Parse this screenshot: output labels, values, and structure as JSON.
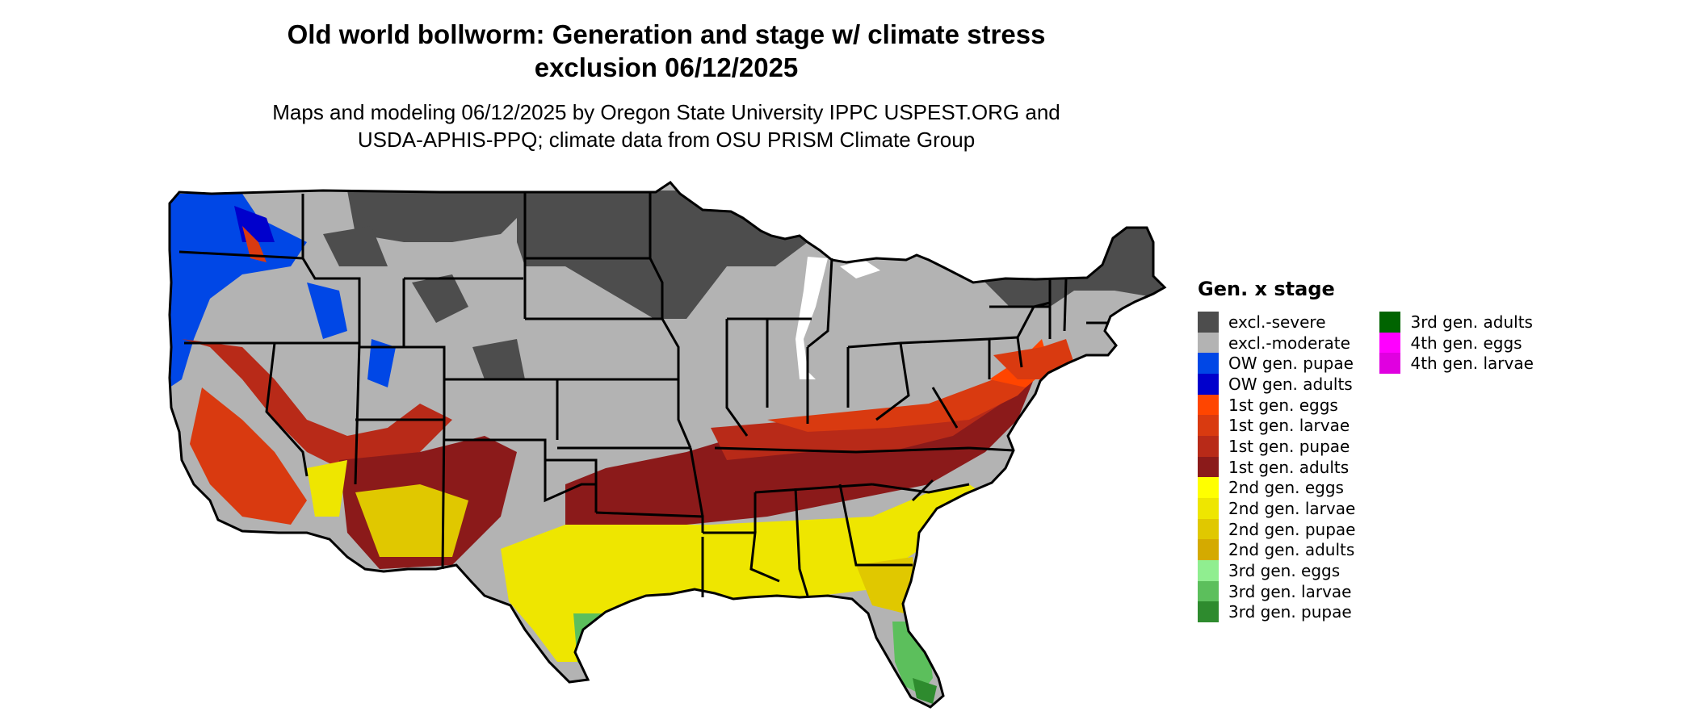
{
  "header": {
    "title_line1": "Old world bollworm: Generation and stage w/ climate stress",
    "title_line2": "exclusion 06/12/2025",
    "subtitle_line1": "Maps and modeling 06/12/2025 by Oregon State University IPPC USPEST.ORG and",
    "subtitle_line2": "USDA-APHIS-PPQ; climate data from OSU PRISM Climate Group"
  },
  "legend": {
    "title": "Gen. x stage",
    "col1": [
      {
        "label": "excl.-severe",
        "color": "#4d4d4d"
      },
      {
        "label": "excl.-moderate",
        "color": "#b3b3b3"
      },
      {
        "label": "OW gen. pupae",
        "color": "#0047e6"
      },
      {
        "label": "OW gen. adults",
        "color": "#0000cc"
      },
      {
        "label": "1st gen. eggs",
        "color": "#ff4500"
      },
      {
        "label": "1st gen. larvae",
        "color": "#d93a10"
      },
      {
        "label": "1st gen. pupae",
        "color": "#b82a18"
      },
      {
        "label": "1st gen. adults",
        "color": "#8b1a1a"
      },
      {
        "label": "2nd gen. eggs",
        "color": "#ffff00"
      },
      {
        "label": "2nd gen. larvae",
        "color": "#eee600"
      },
      {
        "label": "2nd gen. pupae",
        "color": "#e0c800"
      },
      {
        "label": "2nd gen. adults",
        "color": "#d4aa00"
      },
      {
        "label": "3rd gen. eggs",
        "color": "#90ee90"
      },
      {
        "label": "3rd gen. larvae",
        "color": "#5cbf5c"
      },
      {
        "label": "3rd gen. pupae",
        "color": "#2e8b2e"
      }
    ],
    "col2": [
      {
        "label": "3rd gen. adults",
        "color": "#006400"
      },
      {
        "label": "4th gen. eggs",
        "color": "#ff00ff"
      },
      {
        "label": "4th gen. larvae",
        "color": "#e000e0"
      }
    ]
  }
}
